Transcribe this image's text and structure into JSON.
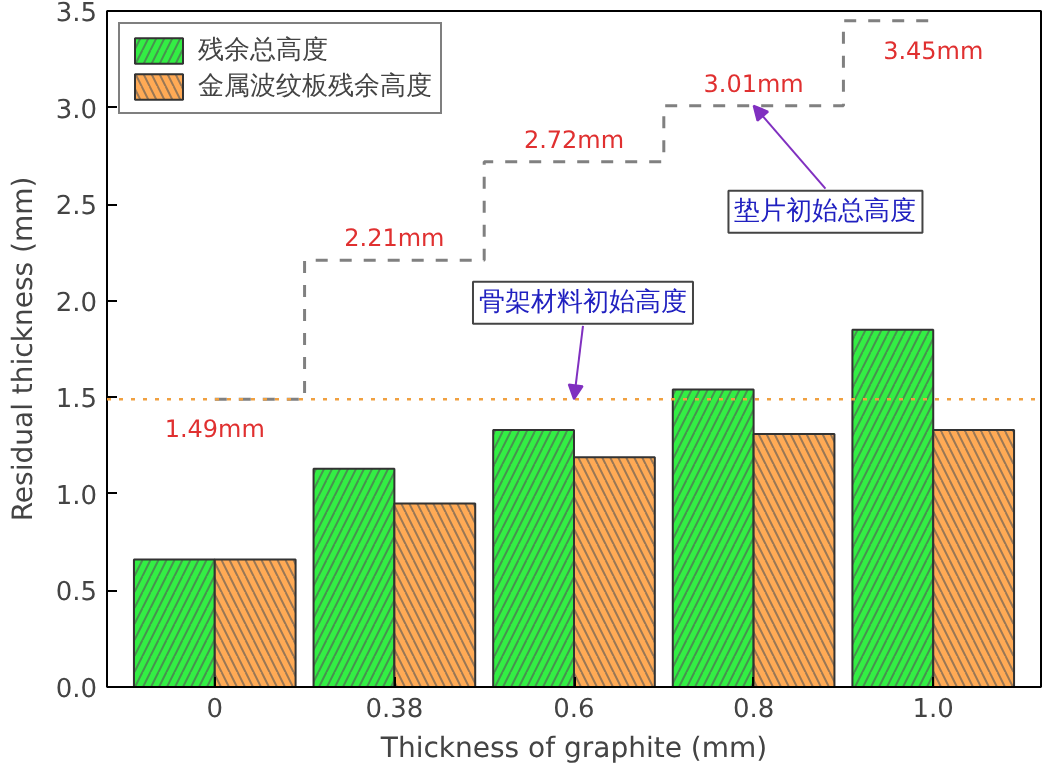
{
  "chart_data": {
    "type": "bar",
    "xlabel": "Thickness of graphite (mm)",
    "ylabel": "Residual thickness (mm)",
    "categories": [
      "0",
      "0.38",
      "0.6",
      "0.8",
      "1.0"
    ],
    "series": [
      {
        "name": "残余总高度",
        "color": "#33ee44",
        "values": [
          0.66,
          1.13,
          1.33,
          1.54,
          1.85
        ]
      },
      {
        "name": "金属波纹板残余高度",
        "color": "#ffaa55",
        "values": [
          0.66,
          0.95,
          1.19,
          1.31,
          1.33
        ]
      },
      {
        "type": "step",
        "color": "#808080",
        "line_style": "dashed",
        "values": [
          1.49,
          2.21,
          2.72,
          3.01,
          3.45
        ],
        "value_labels": [
          "1.49mm",
          "2.21mm",
          "2.72mm",
          "3.01mm",
          "3.45mm"
        ]
      }
    ],
    "ylim": [
      0,
      3.5
    ],
    "yticks": [
      {
        "value": 0,
        "label": "0.0"
      },
      0.5,
      {
        "value": 1,
        "label": "1.0"
      },
      1.5,
      {
        "value": 2,
        "label": "2.0"
      },
      2.5,
      {
        "value": 3,
        "label": "3.0"
      },
      3.5
    ],
    "ref_lines": [
      {
        "axis": "y",
        "value": 1.49,
        "color": "#f0a040",
        "line_style": "dotted"
      }
    ],
    "annotations": [
      {
        "text": "骨架材料初始高度",
        "x": "0.6",
        "y": 1.49
      },
      {
        "text": "垫片初始总高度",
        "x": "0.8",
        "y": 3.01
      }
    ],
    "legend": "top left",
    "grid": false
  }
}
